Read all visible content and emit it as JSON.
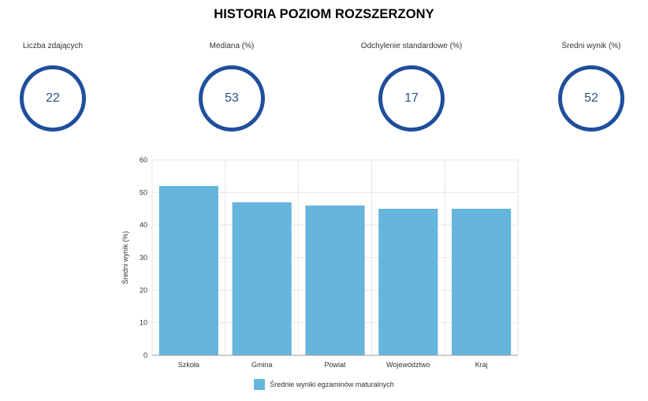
{
  "title": "HISTORIA POZIOM ROZSZERZONY",
  "stats": [
    {
      "label": "Liczba zdających",
      "value": "22"
    },
    {
      "label": "Mediana (%)",
      "value": "53"
    },
    {
      "label": "Odchylenie standardowe (%)",
      "value": "17"
    },
    {
      "label": "Średni wynik (%)",
      "value": "52"
    }
  ],
  "colors": {
    "ring": "#1f4e9c",
    "bar": "#66b5dc",
    "grid": "#e6e6e6"
  },
  "chart_data": {
    "type": "bar",
    "categories": [
      "Szkoła",
      "Gmina",
      "Powiat",
      "Województwo",
      "Kraj"
    ],
    "series": [
      {
        "name": "Średnie wyniki egzaminów maturalnych",
        "values": [
          52,
          47,
          46,
          45,
          45
        ]
      }
    ],
    "ylabel": "Średni wynik (%)",
    "xlabel": "",
    "ylim": [
      0,
      60
    ],
    "yticks": [
      0,
      10,
      20,
      30,
      40,
      50,
      60
    ],
    "grid": true,
    "legend": "bottom"
  }
}
